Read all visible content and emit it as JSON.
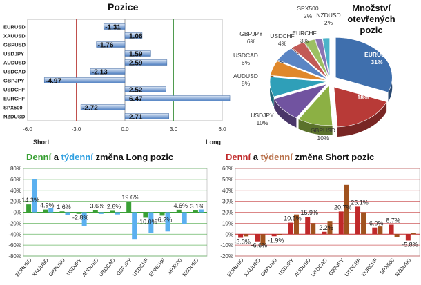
{
  "chart_data": [
    {
      "type": "bar",
      "orientation": "horizontal",
      "title": "Pozice",
      "categories": [
        "EURUSD",
        "XAUUSD",
        "GBPUSD",
        "USDJPY",
        "AUDUSD",
        "USDCAD",
        "GBPJPY",
        "USDCHF",
        "EURCHF",
        "SPX500",
        "NZDUSD"
      ],
      "values": [
        -1.31,
        1.06,
        -1.76,
        1.59,
        2.59,
        -2.13,
        -4.97,
        2.52,
        6.47,
        -2.72,
        2.71
      ],
      "value_labels": [
        "-1.31",
        "1.06",
        "-1.76",
        "1.59",
        "2.59",
        "-2.13",
        "-4.97",
        "2.52",
        "6.47",
        "-2.72",
        "2.71"
      ],
      "xlim": [
        -6.0,
        6.0
      ],
      "xticks": [
        "-6.0",
        "-3.0",
        "0.0",
        "3.0",
        "6.0"
      ],
      "side_labels": {
        "left": "Short",
        "right": "Long"
      },
      "colors": {
        "bar": "#4f7fc1",
        "bar_light": "#dbe6f4",
        "short_line": "#c0504d",
        "long_line": "#4f9b4f"
      }
    },
    {
      "type": "pie",
      "title": "Množství otevřených pozic",
      "categories": [
        "EURUSD",
        "XAUUSD",
        "GBPUSD",
        "USDJPY",
        "AUDUSD",
        "USDCAD",
        "GBPJPY",
        "USDCHF",
        "EURCHF",
        "SPX500",
        "NZDUSD"
      ],
      "values": [
        31,
        18,
        10,
        10,
        8,
        6,
        6,
        4,
        3,
        2,
        2
      ],
      "labels": [
        "31%",
        "18%",
        "10%",
        "10%",
        "8%",
        "6%",
        "6%",
        "4%",
        "3%",
        "2%",
        "2%"
      ],
      "colors": [
        "#3f6fad",
        "#b83a37",
        "#8cb044",
        "#7153a0",
        "#2f9fb8",
        "#e0882b",
        "#5a85c4",
        "#c25a56",
        "#9cbf62",
        "#8a73b3",
        "#4bb3c9"
      ]
    },
    {
      "type": "bar",
      "title_parts": [
        {
          "text": "Denní",
          "color": "#3aa035"
        },
        {
          "text": " a ",
          "color": "#111111"
        },
        {
          "text": "týdenní",
          "color": "#2e9fe0"
        },
        {
          "text": " změna Long pozic",
          "color": "#111111"
        }
      ],
      "categories": [
        "EURUSD",
        "XAUUSD",
        "GBPUSD",
        "USDJPY",
        "AUDUSD",
        "USDCAD",
        "GBPJPY",
        "USDCHF",
        "EURCHF",
        "SPX500",
        "NZDUSD"
      ],
      "series": [
        {
          "values": [
            14.3,
            4.9,
            1.6,
            -2.8,
            3.6,
            2.6,
            19.6,
            -10.0,
            -6.2,
            4.6,
            3.1
          ],
          "color": "#3aa035"
        },
        {
          "values": [
            60,
            8,
            -5,
            -25,
            -3,
            -4,
            -50,
            -38,
            -35,
            -22,
            5
          ],
          "color": "#5bb0f0"
        }
      ],
      "data_labels": [
        "14.3%",
        "4.9%",
        "1.6%",
        "-2.8%",
        "3.6%",
        "2.6%",
        "19.6%",
        "-10.0%",
        "-6.2%",
        "4.6%",
        "3.1%"
      ],
      "ylim": [
        -80,
        80
      ],
      "yticks": [
        "-80%",
        "-60%",
        "-40%",
        "-20%",
        "0%",
        "20%",
        "40%",
        "60%",
        "80%"
      ],
      "grid": true,
      "colors": {
        "grid": "#3aa035"
      }
    },
    {
      "type": "bar",
      "title_parts": [
        {
          "text": "Denní",
          "color": "#c0292a"
        },
        {
          "text": " a ",
          "color": "#111111"
        },
        {
          "text": "týdenní",
          "color": "#b8704a"
        },
        {
          "text": " změna Short pozic",
          "color": "#111111"
        }
      ],
      "categories": [
        "EURUSD",
        "XAUUSD",
        "GBPUSD",
        "USDJPY",
        "AUDUSD",
        "USDCAD",
        "GBPJPY",
        "USDCHF",
        "EURCHF",
        "SPX500",
        "NZDUSD"
      ],
      "series": [
        {
          "values": [
            -3.3,
            -6.6,
            -1.9,
            10.5,
            15.9,
            2.2,
            20.7,
            25.1,
            6.0,
            8.7,
            -5.8
          ],
          "color": "#c0292a"
        },
        {
          "values": [
            -2,
            -10,
            -1,
            18,
            10,
            12,
            45,
            20,
            7,
            -3,
            1
          ],
          "color": "#a0521e"
        }
      ],
      "data_labels": [
        "-3.3%",
        "-6.6%",
        "-1.9%",
        "10.5%",
        "15.9%",
        "2.2%",
        "20.7%",
        "25.1%",
        "6.0%",
        "8.7%",
        "-5.8%"
      ],
      "ylim": [
        -20,
        60
      ],
      "yticks": [
        "-20%",
        "-10%",
        "0%",
        "10%",
        "20%",
        "30%",
        "40%",
        "50%",
        "60%"
      ],
      "grid": true,
      "colors": {
        "grid": "#c0292a"
      }
    }
  ]
}
